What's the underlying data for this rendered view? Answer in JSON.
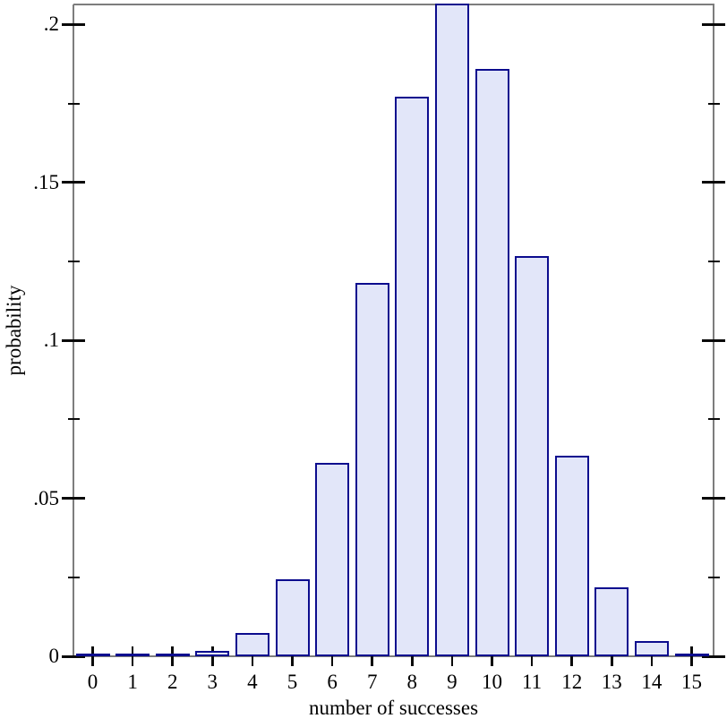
{
  "chart_data": {
    "type": "bar",
    "title": "",
    "xlabel": "number of successes",
    "ylabel": "probability",
    "categories": [
      "0",
      "1",
      "2",
      "3",
      "4",
      "5",
      "6",
      "7",
      "8",
      "9",
      "10",
      "11",
      "12",
      "13",
      "14",
      "15"
    ],
    "values": [
      1e-06,
      2.4e-05,
      0.000254,
      0.001648,
      0.00742,
      0.024486,
      0.061216,
      0.118066,
      0.177084,
      0.206598,
      0.185938,
      0.126776,
      0.063388,
      0.021942,
      0.004702,
      0.00047
    ],
    "ylim": [
      0,
      0.2065
    ],
    "yticks_major": [
      {
        "value": 0,
        "label": "0"
      },
      {
        "value": 0.05,
        "label": ".05"
      },
      {
        "value": 0.1,
        "label": ".1"
      },
      {
        "value": 0.15,
        "label": ".15"
      },
      {
        "value": 0.2,
        "label": ".2"
      }
    ],
    "yticks_minor": [
      0.025,
      0.075,
      0.125,
      0.175
    ],
    "grid": false,
    "legend": null,
    "colors": {
      "bar_fill": "#e2e6f9",
      "bar_border": "#0c0c8e",
      "axis": "#7d7d7d",
      "tick": "#0a0a0a",
      "text": "#000000"
    }
  }
}
